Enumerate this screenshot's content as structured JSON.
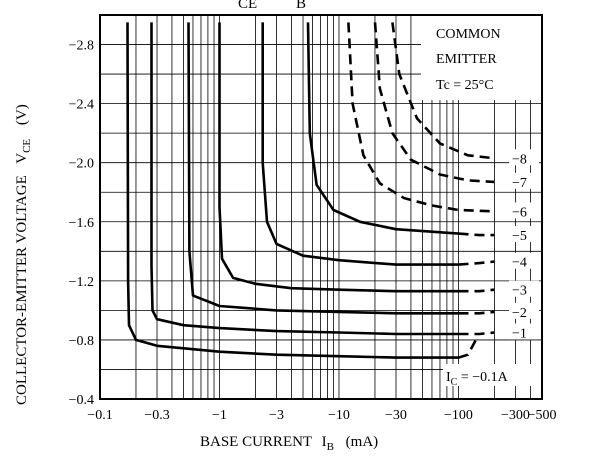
{
  "chart_data": {
    "type": "line",
    "title": "",
    "xlabel": {
      "main": "BASE CURRENT",
      "symbol": "I",
      "sub": "B",
      "unit": "(mA)"
    },
    "ylabel": {
      "main": "COLLECTOR-EMITTER VOLTAGE",
      "symbol": "V",
      "sub": "CE",
      "unit": "(V)"
    },
    "title_fragment": {
      "left": "CE",
      "right": "B"
    },
    "x_scale": "log",
    "xlim": [
      -0.1,
      -500
    ],
    "ylim": [
      -0.4,
      -3.0
    ],
    "x_ticks": [
      {
        "value": -0.1,
        "label": "−0.1"
      },
      {
        "value": -0.3,
        "label": "−0.3"
      },
      {
        "value": -1,
        "label": "−1"
      },
      {
        "value": -3,
        "label": "−3"
      },
      {
        "value": -10,
        "label": "−10"
      },
      {
        "value": -30,
        "label": "−30"
      },
      {
        "value": -100,
        "label": "−100"
      },
      {
        "value": -300,
        "label": "−300"
      },
      {
        "value": -500,
        "label": "−500"
      }
    ],
    "y_ticks": [
      {
        "value": -0.4,
        "label": "−0.4"
      },
      {
        "value": -0.8,
        "label": "−0.8"
      },
      {
        "value": -1.2,
        "label": "−1.2"
      },
      {
        "value": -1.6,
        "label": "−1.6"
      },
      {
        "value": -2.0,
        "label": "−2.0"
      },
      {
        "value": -2.4,
        "label": "−2.4"
      },
      {
        "value": -2.8,
        "label": "−2.8"
      }
    ],
    "grid": true,
    "legend": {
      "lines": [
        "COMMON",
        "EMITTER",
        "Tc = 25°C"
      ],
      "placement": "top-right"
    },
    "series_label_prefix": {
      "symbol": "I",
      "sub": "C",
      "rest": " = −0.1A"
    },
    "series": [
      {
        "name": "−0.1A",
        "label": "",
        "solid": [
          [
            -0.17,
            -2.95
          ],
          [
            -0.172,
            -1.2
          ],
          [
            -0.175,
            -0.9
          ],
          [
            -0.2,
            -0.8
          ],
          [
            -0.3,
            -0.76
          ],
          [
            -1,
            -0.72
          ],
          [
            -3,
            -0.7
          ],
          [
            -10,
            -0.69
          ],
          [
            -30,
            -0.68
          ],
          [
            -100,
            -0.68
          ]
        ],
        "dashed": [
          [
            -100,
            -0.68
          ],
          [
            -120,
            -0.7
          ],
          [
            -140,
            -0.8
          ]
        ]
      },
      {
        "name": "−1",
        "label": "−1",
        "solid": [
          [
            -0.27,
            -2.95
          ],
          [
            -0.27,
            -1.3
          ],
          [
            -0.275,
            -1.0
          ],
          [
            -0.3,
            -0.94
          ],
          [
            -0.5,
            -0.9
          ],
          [
            -1,
            -0.88
          ],
          [
            -3,
            -0.86
          ],
          [
            -10,
            -0.85
          ],
          [
            -30,
            -0.84
          ],
          [
            -100,
            -0.84
          ]
        ],
        "dashed": [
          [
            -100,
            -0.84
          ],
          [
            -150,
            -0.84
          ],
          [
            -200,
            -0.85
          ]
        ]
      },
      {
        "name": "−2",
        "label": "−2",
        "solid": [
          [
            -0.55,
            -2.95
          ],
          [
            -0.56,
            -1.4
          ],
          [
            -0.6,
            -1.1
          ],
          [
            -1,
            -1.03
          ],
          [
            -3,
            -1.0
          ],
          [
            -10,
            -0.99
          ],
          [
            -30,
            -0.98
          ],
          [
            -100,
            -0.98
          ]
        ],
        "dashed": [
          [
            -100,
            -0.98
          ],
          [
            -150,
            -0.98
          ],
          [
            -200,
            -0.99
          ]
        ]
      },
      {
        "name": "−3",
        "label": "−3",
        "solid": [
          [
            -1.0,
            -2.95
          ],
          [
            -1.0,
            -1.7
          ],
          [
            -1.05,
            -1.35
          ],
          [
            -1.3,
            -1.22
          ],
          [
            -2,
            -1.18
          ],
          [
            -4,
            -1.15
          ],
          [
            -10,
            -1.14
          ],
          [
            -30,
            -1.13
          ],
          [
            -100,
            -1.13
          ]
        ],
        "dashed": [
          [
            -100,
            -1.13
          ],
          [
            -150,
            -1.13
          ],
          [
            -200,
            -1.14
          ]
        ]
      },
      {
        "name": "−4",
        "label": "−4",
        "solid": [
          [
            -2.3,
            -2.95
          ],
          [
            -2.3,
            -2.0
          ],
          [
            -2.5,
            -1.6
          ],
          [
            -3,
            -1.45
          ],
          [
            -5,
            -1.37
          ],
          [
            -10,
            -1.34
          ],
          [
            -30,
            -1.31
          ],
          [
            -100,
            -1.31
          ]
        ],
        "dashed": [
          [
            -100,
            -1.31
          ],
          [
            -150,
            -1.32
          ],
          [
            -200,
            -1.33
          ]
        ]
      },
      {
        "name": "−5",
        "label": "−5",
        "solid": [
          [
            -5.5,
            -2.95
          ],
          [
            -5.7,
            -2.2
          ],
          [
            -6.5,
            -1.85
          ],
          [
            -9,
            -1.68
          ],
          [
            -15,
            -1.6
          ],
          [
            -30,
            -1.55
          ],
          [
            -100,
            -1.52
          ]
        ],
        "dashed": [
          [
            -100,
            -1.52
          ],
          [
            -150,
            -1.51
          ],
          [
            -200,
            -1.51
          ]
        ]
      },
      {
        "name": "−6",
        "label": "−6",
        "solid": [],
        "dashed": [
          [
            -12,
            -2.95
          ],
          [
            -13,
            -2.4
          ],
          [
            -16,
            -2.05
          ],
          [
            -22,
            -1.86
          ],
          [
            -35,
            -1.76
          ],
          [
            -60,
            -1.71
          ],
          [
            -100,
            -1.68
          ],
          [
            -200,
            -1.67
          ]
        ]
      },
      {
        "name": "−7",
        "label": "−7",
        "solid": [],
        "dashed": [
          [
            -20,
            -2.95
          ],
          [
            -22,
            -2.5
          ],
          [
            -28,
            -2.2
          ],
          [
            -40,
            -2.02
          ],
          [
            -70,
            -1.92
          ],
          [
            -120,
            -1.88
          ],
          [
            -200,
            -1.87
          ]
        ]
      },
      {
        "name": "−8",
        "label": "−8",
        "solid": [],
        "dashed": [
          [
            -28,
            -2.95
          ],
          [
            -32,
            -2.6
          ],
          [
            -45,
            -2.3
          ],
          [
            -70,
            -2.13
          ],
          [
            -120,
            -2.05
          ],
          [
            -200,
            -2.03
          ]
        ]
      }
    ]
  }
}
